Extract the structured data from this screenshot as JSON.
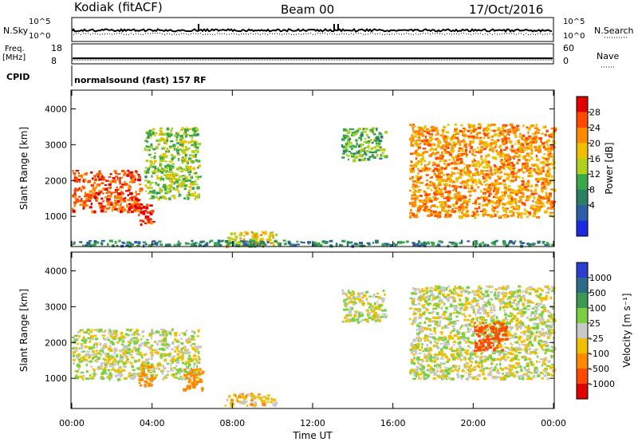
{
  "header": {
    "station": "Kodiak (fitACF)",
    "beam": "Beam 00",
    "date": "17/Oct/2016"
  },
  "strips": {
    "nsky_label": "N.Sky",
    "nsearch_label": "N.Search",
    "freq_label_1": "Freq.",
    "freq_label_2": "[MHz]",
    "nave_label": "Nave",
    "cpid_label": "CPID",
    "cpid_value": "normalsound (fast) 157 RF",
    "noise_ticks_left": [
      "10^5",
      "10^0"
    ],
    "noise_ticks_right": [
      "10^5",
      "10^0"
    ],
    "freq_ticks": [
      "18",
      "8"
    ],
    "nave_ticks": [
      "60",
      "0"
    ]
  },
  "colorbars": {
    "power": {
      "label": "Power [dB]",
      "ticks": [
        "28",
        "24",
        "20",
        "16",
        "12",
        "8",
        "4"
      ],
      "colors": [
        "#e00000",
        "#ff4a00",
        "#ff8a00",
        "#f0c000",
        "#b0d020",
        "#38a848",
        "#2b7f64",
        "#2c5ea8",
        "#1a2ae0"
      ]
    },
    "velocity": {
      "label": "Velocity [m s⁻¹]",
      "ticks": [
        "1000",
        "500",
        "100",
        "25",
        "-25",
        "-100",
        "-500",
        "-1000"
      ],
      "colors": [
        "#2a3fd0",
        "#2c6b8c",
        "#3a9a50",
        "#7ad040",
        "#c8c8c8",
        "#f0c000",
        "#ff8a00",
        "#ff4a00",
        "#e00000"
      ]
    }
  },
  "chart_data": [
    {
      "type": "heatmap",
      "name": "power",
      "xlabel": "",
      "ylabel": "Slant Range [km]",
      "xlim": [
        "00:00",
        "24:00"
      ],
      "ylim": [
        180,
        4500
      ],
      "yticks": [
        "1000",
        "2000",
        "3000",
        "4000"
      ],
      "color_units": "dB",
      "bands": [
        {
          "from_ut": 0.0,
          "to_ut": 3.4,
          "range_from_km": 1150,
          "range_to_km": 2300,
          "value": 26
        },
        {
          "from_ut": 3.3,
          "to_ut": 4.0,
          "range_from_km": 800,
          "range_to_km": 1400,
          "value": 28
        },
        {
          "from_ut": 3.6,
          "to_ut": 6.3,
          "range_from_km": 1500,
          "range_to_km": 3500,
          "value": 14
        },
        {
          "from_ut": 7.6,
          "to_ut": 10.2,
          "range_from_km": 200,
          "range_to_km": 600,
          "value": 18
        },
        {
          "from_ut": 13.4,
          "to_ut": 15.6,
          "range_from_km": 2600,
          "range_to_km": 3500,
          "value": 12
        },
        {
          "from_ut": 16.8,
          "to_ut": 24.0,
          "range_from_km": 1000,
          "range_to_km": 3600,
          "value": 22
        },
        {
          "from_ut": 0.0,
          "to_ut": 24.0,
          "range_from_km": 200,
          "range_to_km": 350,
          "value": 8
        }
      ]
    },
    {
      "type": "heatmap",
      "name": "velocity",
      "xlabel": "Time UT",
      "ylabel": "Slant Range [km]",
      "xlim": [
        "00:00",
        "24:00"
      ],
      "ylim": [
        180,
        4500
      ],
      "xticks": [
        "00:00",
        "04:00",
        "08:00",
        "12:00",
        "16:00",
        "20:00",
        "00:00"
      ],
      "yticks": [
        "1000",
        "2000",
        "3000",
        "4000"
      ],
      "color_units": "m s-1",
      "bands": [
        {
          "from_ut": 0.0,
          "to_ut": 6.3,
          "range_from_km": 1000,
          "range_to_km": 2400,
          "value": 0
        },
        {
          "from_ut": 3.3,
          "to_ut": 4.0,
          "range_from_km": 800,
          "range_to_km": 1400,
          "value": -400
        },
        {
          "from_ut": 5.5,
          "to_ut": 6.5,
          "range_from_km": 700,
          "range_to_km": 1300,
          "value": -300
        },
        {
          "from_ut": 7.6,
          "to_ut": 10.2,
          "range_from_km": 250,
          "range_to_km": 600,
          "value": -60
        },
        {
          "from_ut": 13.4,
          "to_ut": 15.6,
          "range_from_km": 2600,
          "range_to_km": 3500,
          "value": 0
        },
        {
          "from_ut": 16.8,
          "to_ut": 24.0,
          "range_from_km": 1000,
          "range_to_km": 3600,
          "value": 0
        },
        {
          "from_ut": 20.0,
          "to_ut": 21.6,
          "range_from_km": 1800,
          "range_to_km": 2600,
          "value": -900
        }
      ]
    }
  ]
}
